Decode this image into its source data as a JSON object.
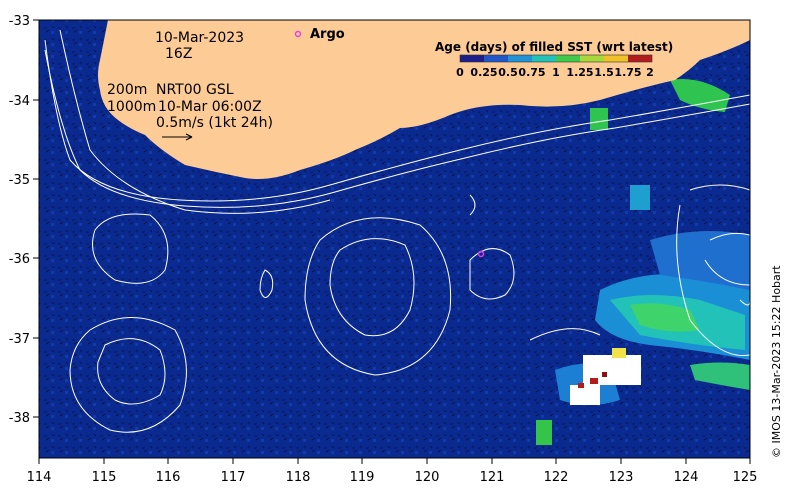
{
  "map": {
    "x_ticks": [
      "114",
      "115",
      "116",
      "117",
      "118",
      "119",
      "120",
      "121",
      "122",
      "123",
      "124",
      "125"
    ],
    "y_ticks": [
      "-33",
      "-34",
      "-35",
      "-36",
      "-37",
      "-38"
    ],
    "lon_range": [
      114,
      125
    ],
    "lat_range": [
      -38.5,
      -33
    ]
  },
  "annotations": {
    "date": "10-Mar-2023",
    "time": "16Z",
    "contour_200": "200m",
    "contour_1000": "1000m",
    "nrt_label": "NRT00 GSL",
    "nrt_time": "10-Mar 06:00Z",
    "velocity_scale": "0.5m/s (1kt 24h)"
  },
  "argo": {
    "label": "Argo",
    "marker_color": "#e040e0"
  },
  "colorbar": {
    "title": "Age (days) of filled SST (wrt latest)",
    "ticks": [
      "0",
      "0.25",
      "0.5",
      "0.75",
      "1",
      "1.25",
      "1.5",
      "1.75",
      "2"
    ]
  },
  "credit": "© IMOS 13-Mar-2023 15:22 Hobart",
  "colors": {
    "land": "#fdcb96",
    "ocean": "#0b2a8f"
  }
}
